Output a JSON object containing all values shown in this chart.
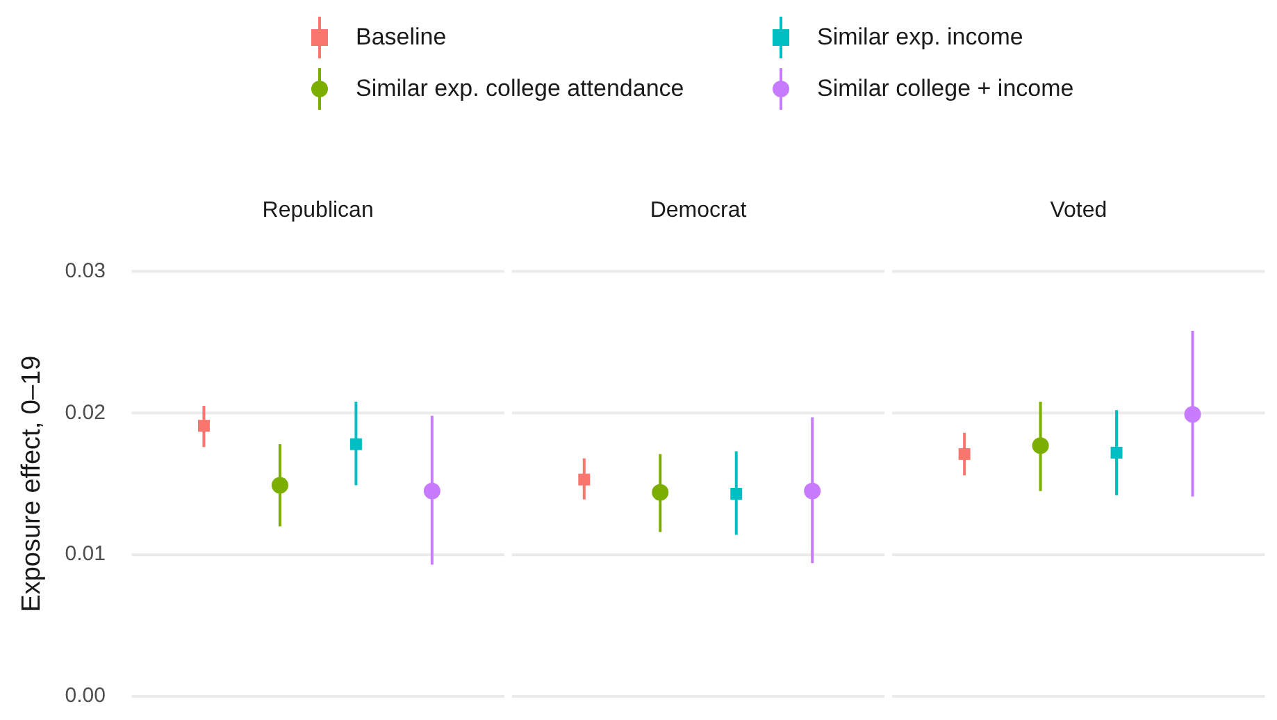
{
  "chart_data": {
    "type": "scatter",
    "ylabel": "Exposure effect, 0–19",
    "categories": [
      "Republican",
      "Democrat",
      "Voted"
    ],
    "ylim": [
      0,
      0.03
    ],
    "yticks": [
      {
        "value": 0,
        "label": "0.00"
      },
      {
        "value": 0.01,
        "label": "0.01"
      },
      {
        "value": 0.02,
        "label": "0.02"
      },
      {
        "value": 0.03,
        "label": "0.03"
      }
    ],
    "grid": "y",
    "legend": "top",
    "series": [
      {
        "name": "Baseline",
        "color": "#f8766d",
        "marker": "square",
        "values": [
          0.0191,
          0.0153,
          0.0171
        ],
        "errors": [
          [
            0.0176,
            0.0205
          ],
          [
            0.0139,
            0.0168
          ],
          [
            0.0156,
            0.0186
          ]
        ]
      },
      {
        "name": "Similar exp. college attendance",
        "color": "#7cae00",
        "marker": "circle",
        "values": [
          0.0149,
          0.0144,
          0.0177
        ],
        "errors": [
          [
            0.012,
            0.0178
          ],
          [
            0.0116,
            0.0171
          ],
          [
            0.0145,
            0.0208
          ]
        ]
      },
      {
        "name": "Similar exp. income",
        "color": "#00bfc4",
        "marker": "square",
        "values": [
          0.0178,
          0.0143,
          0.0172
        ],
        "errors": [
          [
            0.0149,
            0.0208
          ],
          [
            0.0114,
            0.0173
          ],
          [
            0.0142,
            0.0202
          ]
        ]
      },
      {
        "name": "Similar college + income",
        "color": "#c77cff",
        "marker": "circle",
        "values": [
          0.0145,
          0.0145,
          0.0199
        ],
        "errors": [
          [
            0.0093,
            0.0198
          ],
          [
            0.0094,
            0.0197
          ],
          [
            0.0141,
            0.0258
          ]
        ]
      }
    ]
  }
}
